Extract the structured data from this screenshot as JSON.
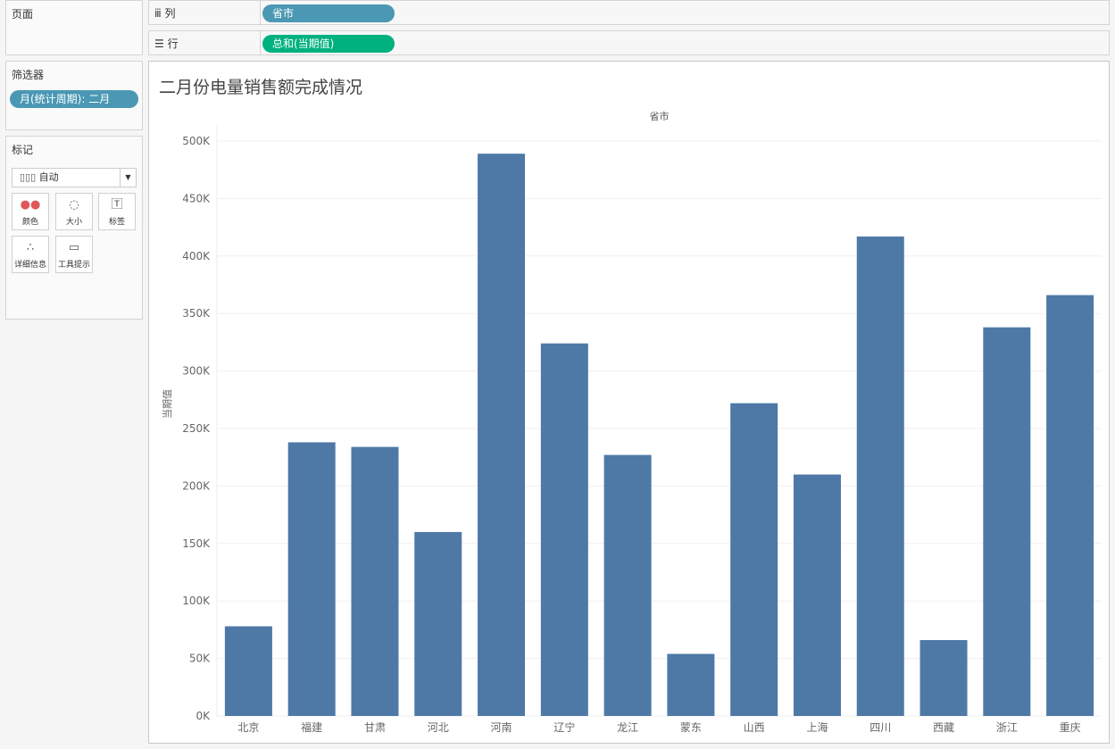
{
  "pages": {
    "title": "页面"
  },
  "filters": {
    "title": "筛选器",
    "pill": "月(统计周期): 二月",
    "pill_color": "#4a98b4"
  },
  "marks": {
    "title": "标记",
    "type": "自动",
    "cards": [
      {
        "label": "颜色",
        "icon": "color-icon"
      },
      {
        "label": "大小",
        "icon": "size-icon"
      },
      {
        "label": "标签",
        "icon": "label-icon"
      },
      {
        "label": "详细信息",
        "icon": "detail-icon"
      },
      {
        "label": "工具提示",
        "icon": "tooltip-icon"
      }
    ]
  },
  "shelves": {
    "columns": {
      "label": "列",
      "pill": "省市",
      "color": "#4a98b4"
    },
    "rows": {
      "label": "行",
      "pill": "总和(当期值)",
      "color": "#00b180"
    }
  },
  "chart_data": {
    "type": "bar",
    "title": "二月份电量销售额完成情况",
    "xheader": "省市",
    "ylabel": "当期值",
    "categories": [
      "北京",
      "福建",
      "甘肃",
      "河北",
      "河南",
      "辽宁",
      "龙江",
      "蒙东",
      "山西",
      "上海",
      "四川",
      "西藏",
      "浙江",
      "重庆"
    ],
    "values": [
      78000,
      238000,
      234000,
      160000,
      489000,
      324000,
      227000,
      54000,
      272000,
      210000,
      417000,
      66000,
      338000,
      366000
    ],
    "ylim": [
      0,
      500000
    ],
    "yticks": [
      "0K",
      "50K",
      "100K",
      "150K",
      "200K",
      "250K",
      "300K",
      "350K",
      "400K",
      "450K",
      "500K"
    ],
    "grid": true,
    "bar_color": "#4e79a7"
  }
}
